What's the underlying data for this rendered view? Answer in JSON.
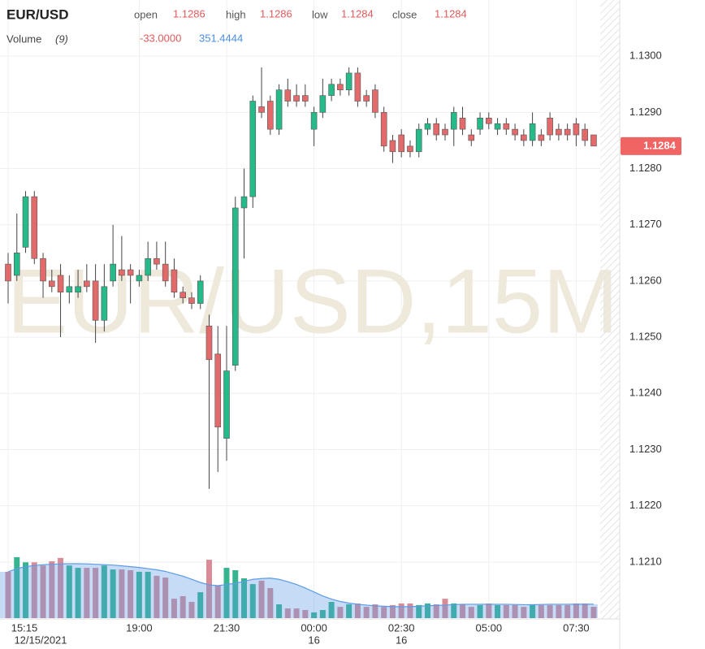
{
  "chart_data": {
    "type": "candlestick",
    "symbol": "EUR/USD",
    "watermark": "EUR/USD,15M",
    "header": {
      "open_label": "open",
      "open": "1.1286",
      "high_label": "high",
      "high": "1.1286",
      "low_label": "low",
      "low": "1.1284",
      "close_label": "close",
      "close": "1.1284",
      "volume_label": "Volume",
      "volume_period": "(9)",
      "volume_change": "-33.0000",
      "volume_ma_value": "351.4444"
    },
    "categories": [
      "15:15",
      null,
      null,
      null,
      null,
      null,
      null,
      null,
      null,
      null,
      null,
      null,
      null,
      null,
      null,
      "19:00",
      null,
      null,
      null,
      null,
      null,
      null,
      null,
      null,
      null,
      "21:30",
      null,
      null,
      null,
      null,
      null,
      null,
      null,
      null,
      null,
      "00:00",
      null,
      null,
      null,
      null,
      null,
      null,
      null,
      null,
      null,
      "02:30",
      null,
      null,
      null,
      null,
      null,
      null,
      null,
      null,
      null,
      "05:00",
      null,
      null,
      null,
      null,
      null,
      null,
      null,
      null,
      null,
      "07:30",
      null,
      null
    ],
    "date_labels": [
      "12/15/2021",
      null,
      null,
      null,
      null,
      null,
      null,
      null,
      null,
      null,
      null,
      null,
      null,
      null,
      null,
      null,
      null,
      null,
      null,
      null,
      null,
      null,
      null,
      null,
      null,
      null,
      null,
      null,
      null,
      null,
      null,
      null,
      null,
      null,
      null,
      "16",
      null,
      null,
      null,
      null,
      null,
      null,
      null,
      null,
      null,
      "16",
      null,
      null,
      null,
      null,
      null,
      null,
      null,
      null,
      null,
      null,
      null,
      null,
      null,
      null,
      null,
      null,
      null,
      null,
      null,
      null,
      null,
      null
    ],
    "open": [
      1.1263,
      1.1261,
      1.1266,
      1.1275,
      1.1264,
      1.126,
      1.1261,
      1.1258,
      1.1258,
      1.126,
      1.126,
      1.1253,
      1.126,
      1.1262,
      1.1262,
      1.126,
      1.1261,
      1.1264,
      1.1263,
      1.1262,
      1.1258,
      1.1257,
      1.1256,
      1.1252,
      1.1247,
      1.1232,
      1.1245,
      1.1273,
      1.1275,
      1.1291,
      1.1292,
      1.1287,
      1.1294,
      1.1293,
      1.1293,
      1.1287,
      1.129,
      1.1293,
      1.1295,
      1.1294,
      1.1297,
      1.1293,
      1.1294,
      1.129,
      1.1285,
      1.1286,
      1.1284,
      1.1283,
      1.1287,
      1.1288,
      1.1287,
      1.1287,
      1.1289,
      1.1286,
      1.1287,
      1.1289,
      1.1287,
      1.1288,
      1.1287,
      1.1286,
      1.1285,
      1.1286,
      1.1289,
      1.1287,
      1.1287,
      1.1288,
      1.1287,
      1.1286
    ],
    "high": [
      1.1265,
      1.1272,
      1.1276,
      1.1276,
      1.1265,
      1.1262,
      1.1263,
      1.1261,
      1.1262,
      1.1263,
      1.1263,
      1.1263,
      1.127,
      1.1268,
      1.1263,
      1.1262,
      1.1267,
      1.1267,
      1.1267,
      1.1264,
      1.1259,
      1.1258,
      1.1261,
      1.1254,
      1.1252,
      1.1252,
      1.1275,
      1.128,
      1.1293,
      1.1298,
      1.1293,
      1.1295,
      1.1296,
      1.1295,
      1.1295,
      1.1291,
      1.1296,
      1.1296,
      1.1296,
      1.1298,
      1.1298,
      1.1294,
      1.1295,
      1.1291,
      1.1286,
      1.1287,
      1.1285,
      1.1288,
      1.1289,
      1.1289,
      1.1288,
      1.1291,
      1.1291,
      1.1287,
      1.129,
      1.129,
      1.1289,
      1.1289,
      1.1288,
      1.1287,
      1.129,
      1.1287,
      1.129,
      1.1288,
      1.1288,
      1.1289,
      1.1288,
      1.1286
    ],
    "low": [
      1.1256,
      1.126,
      1.1265,
      1.1263,
      1.1257,
      1.1258,
      1.125,
      1.1256,
      1.1257,
      1.1258,
      1.1249,
      1.1251,
      1.1259,
      1.126,
      1.1256,
      1.1259,
      1.126,
      1.1262,
      1.1259,
      1.1257,
      1.1256,
      1.1255,
      1.1255,
      1.1223,
      1.1226,
      1.1228,
      1.1244,
      1.1264,
      1.1273,
      1.1289,
      1.1286,
      1.1286,
      1.1291,
      1.1291,
      1.1291,
      1.1284,
      1.1289,
      1.1292,
      1.1293,
      1.1293,
      1.1291,
      1.1291,
      1.1289,
      1.1283,
      1.1281,
      1.1282,
      1.1282,
      1.1282,
      1.1286,
      1.1285,
      1.1285,
      1.1284,
      1.1286,
      1.1284,
      1.1286,
      1.1287,
      1.1286,
      1.1286,
      1.1285,
      1.1284,
      1.1284,
      1.1284,
      1.1285,
      1.1285,
      1.1285,
      1.1284,
      1.1284,
      1.1284
    ],
    "close": [
      1.126,
      1.1265,
      1.1275,
      1.1264,
      1.126,
      1.1259,
      1.1258,
      1.1259,
      1.1259,
      1.1259,
      1.1253,
      1.1259,
      1.1263,
      1.1261,
      1.1261,
      1.1261,
      1.1264,
      1.1263,
      1.126,
      1.1258,
      1.1257,
      1.1256,
      1.126,
      1.1246,
      1.1234,
      1.1244,
      1.1273,
      1.1275,
      1.1292,
      1.129,
      1.1287,
      1.1294,
      1.1292,
      1.1292,
      1.1292,
      1.129,
      1.1293,
      1.1295,
      1.1294,
      1.1297,
      1.1292,
      1.1292,
      1.129,
      1.1284,
      1.1283,
      1.1283,
      1.1283,
      1.1287,
      1.1288,
      1.1286,
      1.1286,
      1.129,
      1.1287,
      1.1285,
      1.1289,
      1.1288,
      1.1288,
      1.1287,
      1.1286,
      1.1285,
      1.1288,
      1.1285,
      1.1286,
      1.1286,
      1.1286,
      1.1286,
      1.1285,
      1.1284
    ],
    "volume": [
      1170,
      1540,
      1410,
      1410,
      1330,
      1435,
      1520,
      1330,
      1270,
      1270,
      1270,
      1330,
      1230,
      1230,
      1210,
      1170,
      1170,
      1070,
      1025,
      490,
      555,
      410,
      655,
      1475,
      820,
      1270,
      1210,
      1005,
      860,
      945,
      760,
      350,
      245,
      245,
      205,
      145,
      205,
      410,
      285,
      350,
      370,
      285,
      350,
      285,
      330,
      370,
      370,
      330,
      370,
      350,
      490,
      370,
      350,
      285,
      330,
      370,
      330,
      330,
      330,
      285,
      350,
      330,
      330,
      330,
      330,
      370,
      370,
      285
    ],
    "volume_ma": [
      1170,
      1250,
      1300,
      1330,
      1350,
      1360,
      1370,
      1375,
      1375,
      1370,
      1360,
      1350,
      1340,
      1320,
      1300,
      1280,
      1250,
      1220,
      1180,
      1120,
      1060,
      980,
      900,
      840,
      820,
      850,
      880,
      930,
      980,
      1000,
      1010,
      980,
      920,
      850,
      760,
      660,
      560,
      480,
      420,
      380,
      350,
      330,
      310,
      300,
      290,
      290,
      290,
      300,
      310,
      320,
      330,
      340,
      350,
      350,
      350,
      350,
      350,
      350,
      345,
      340,
      340,
      345,
      350,
      350,
      350,
      351,
      351,
      351
    ],
    "ylim": [
      1.12,
      1.131
    ],
    "yticks": [
      {
        "value": 1.13,
        "label": "1.1300"
      },
      {
        "value": 1.129,
        "label": "1.1290"
      },
      {
        "value": 1.128,
        "label": "1.1280"
      },
      {
        "value": 1.127,
        "label": "1.1270"
      },
      {
        "value": 1.126,
        "label": "1.1260"
      },
      {
        "value": 1.125,
        "label": "1.1250"
      },
      {
        "value": 1.124,
        "label": "1.1240"
      },
      {
        "value": 1.123,
        "label": "1.1230"
      },
      {
        "value": 1.122,
        "label": "1.1220"
      },
      {
        "value": 1.121,
        "label": "1.1210"
      }
    ],
    "volume_lim": [
      0,
      1600
    ],
    "last_price": {
      "value": 1.1284,
      "label": "1.1284"
    },
    "up_color": "#26b98a",
    "down_color": "#e36a6a",
    "volume_up_color": "#35b48f",
    "volume_down_color": "#d98c98",
    "volume_ma_color": "#5b9be6",
    "grid": true
  }
}
